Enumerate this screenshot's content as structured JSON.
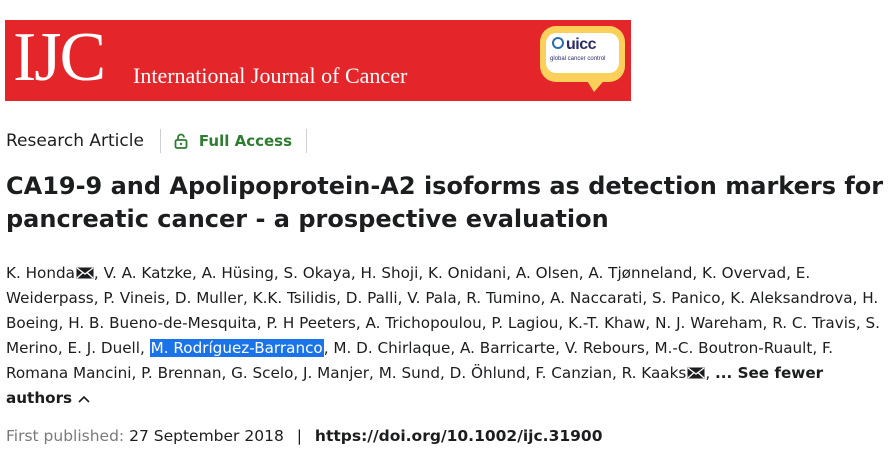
{
  "banner": {
    "logo_text": "IJC",
    "journal_name": "International Journal of Cancer",
    "partner_logo_word": "uicc",
    "partner_logo_sub": "global cancer control",
    "colors": {
      "banner": "#e4262b",
      "bubble": "#fbd05a"
    }
  },
  "article": {
    "type": "Research Article",
    "access": "Full Access",
    "access_color": "#2e7d32",
    "title": "CA19-9 and Apolipoprotein-A2 isoforms as detection markers for pancreatic cancer - a prospective evaluation"
  },
  "authors": [
    {
      "name": "K. Honda",
      "mail": true
    },
    {
      "name": "V. A. Katzke"
    },
    {
      "name": "A. Hüsing"
    },
    {
      "name": "S. Okaya"
    },
    {
      "name": "H. Shoji"
    },
    {
      "name": "K. Onidani"
    },
    {
      "name": "A. Olsen"
    },
    {
      "name": "A. Tjønneland"
    },
    {
      "name": "K. Overvad"
    },
    {
      "name": "E. Weiderpass"
    },
    {
      "name": "P. Vineis"
    },
    {
      "name": "D. Muller"
    },
    {
      "name": "K.K. Tsilidis"
    },
    {
      "name": "D. Palli"
    },
    {
      "name": "V. Pala"
    },
    {
      "name": "R. Tumino"
    },
    {
      "name": "A. Naccarati"
    },
    {
      "name": "S. Panico"
    },
    {
      "name": "K. Aleksandrova"
    },
    {
      "name": "H. Boeing"
    },
    {
      "name": "H. B. Bueno-de-Mesquita"
    },
    {
      "name": "P. H Peeters"
    },
    {
      "name": "A. Trichopoulou"
    },
    {
      "name": "P. Lagiou"
    },
    {
      "name": "K.-T. Khaw"
    },
    {
      "name": "N. J. Wareham"
    },
    {
      "name": "R. C. Travis"
    },
    {
      "name": "S. Merino"
    },
    {
      "name": "E. J. Duell"
    },
    {
      "name": "M. Rodríguez-Barranco",
      "highlighted": true
    },
    {
      "name": "M. D. Chirlaque"
    },
    {
      "name": "A. Barricarte"
    },
    {
      "name": "V. Rebours"
    },
    {
      "name": "M.-C. Boutron-Ruault"
    },
    {
      "name": "F. Romana Mancini"
    },
    {
      "name": "P. Brennan"
    },
    {
      "name": "G. Scelo"
    },
    {
      "name": "J. Manjer"
    },
    {
      "name": "M. Sund"
    },
    {
      "name": "D. Öhlund"
    },
    {
      "name": "F. Canzian"
    },
    {
      "name": "R. Kaaks",
      "mail": true
    }
  ],
  "authors_toggle": "... See fewer authors",
  "publication": {
    "label": "First published:",
    "date": "27 September 2018",
    "separator": "|",
    "doi": "https://doi.org/10.1002/ijc.31900"
  },
  "icons": {
    "mail": "envelope-icon",
    "access": "open-lock-icon",
    "toggle": "chevron-up-icon"
  }
}
